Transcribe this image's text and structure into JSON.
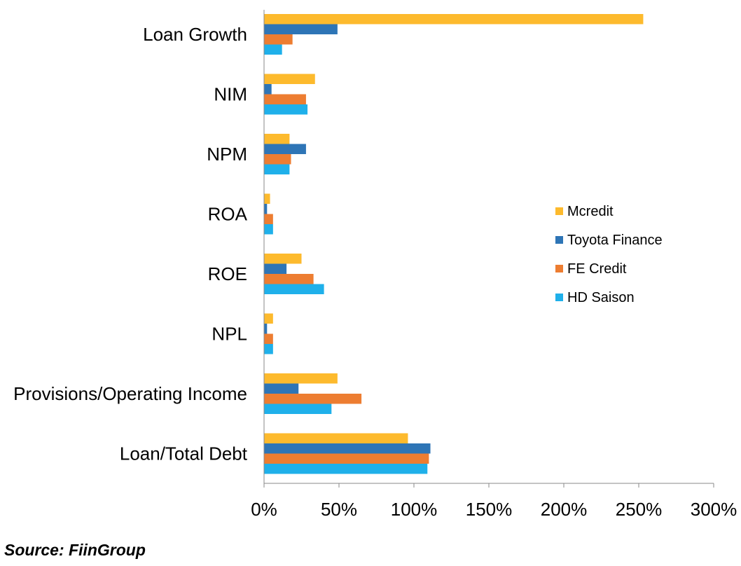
{
  "chart_data": {
    "type": "bar",
    "orientation": "horizontal",
    "categories": [
      "Loan Growth",
      "NIM",
      "NPM",
      "ROA",
      "ROE",
      "NPL",
      "Provisions/Operating Income",
      "Loan/Total Debt"
    ],
    "series": [
      {
        "name": "Mcredit",
        "color": "#FDBA2D",
        "values": [
          253,
          34,
          17,
          4,
          25,
          6,
          49,
          96
        ]
      },
      {
        "name": "Toyota Finance",
        "color": "#2E75B6",
        "values": [
          49,
          5,
          28,
          2,
          15,
          2,
          23,
          111
        ]
      },
      {
        "name": "FE Credit",
        "color": "#ED7D31",
        "values": [
          19,
          28,
          18,
          6,
          33,
          6,
          65,
          110
        ]
      },
      {
        "name": "HD Saison",
        "color": "#1FB0EA",
        "values": [
          12,
          29,
          17,
          6,
          40,
          6,
          45,
          109
        ]
      }
    ],
    "xlim": [
      0,
      300
    ],
    "xticks": [
      "0%",
      "50%",
      "100%",
      "150%",
      "200%",
      "250%",
      "300%"
    ],
    "grid": false,
    "legend_position": "right"
  },
  "source_text": "Source: FiinGroup"
}
